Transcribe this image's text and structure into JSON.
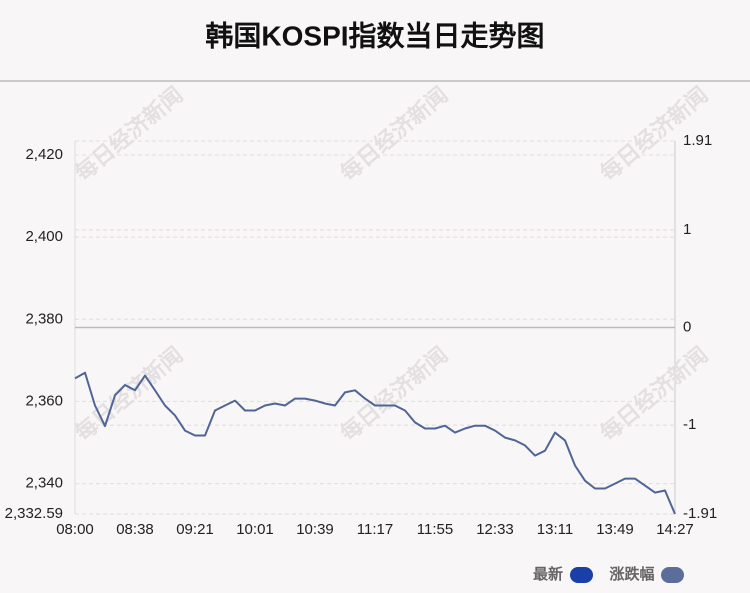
{
  "chart_data": {
    "type": "line",
    "title": "韩国KOSPI指数当日走势图",
    "watermark": "每日经济新闻",
    "categories": [
      "08:00",
      null,
      null,
      null,
      null,
      null,
      "08:38",
      null,
      null,
      null,
      null,
      null,
      "09:21",
      null,
      null,
      null,
      null,
      null,
      "10:01",
      null,
      null,
      null,
      null,
      null,
      "10:39",
      null,
      null,
      null,
      null,
      null,
      "11:17",
      null,
      null,
      null,
      null,
      null,
      "11:55",
      null,
      null,
      null,
      null,
      null,
      "12:33",
      null,
      null,
      null,
      null,
      null,
      "13:11",
      null,
      null,
      null,
      null,
      null,
      "13:49",
      null,
      null,
      null,
      null,
      null,
      "14:27"
    ],
    "series": [
      {
        "name": "最新",
        "color": "#1a3fa8",
        "line_color": "#4f6596",
        "values": [
          2365.6,
          2367,
          2359,
          2354,
          2361.5,
          2364,
          2362.7,
          2366.3,
          2362.7,
          2359,
          2356.6,
          2352.9,
          2351.7,
          2351.7,
          2357.8,
          2359,
          2360.2,
          2357.8,
          2357.8,
          2359,
          2359.5,
          2359,
          2360.7,
          2360.7,
          2360.2,
          2359.5,
          2359,
          2362.2,
          2362.7,
          2360.7,
          2359,
          2359,
          2359,
          2357.8,
          2354.9,
          2353.4,
          2353.4,
          2354.1,
          2352.4,
          2353.4,
          2354.1,
          2354.1,
          2352.9,
          2351.2,
          2350.5,
          2349.3,
          2346.8,
          2348,
          2352.4,
          2350.5,
          2344.4,
          2340.7,
          2338.8,
          2338.8,
          2340,
          2341.2,
          2341.2,
          2339.5,
          2337.8,
          2338.3,
          2332.59
        ]
      },
      {
        "name": "涨跌幅",
        "color": "#5b6e9b",
        "axis": "y2"
      }
    ],
    "ylim": [
      2332.59,
      2423.41
    ],
    "yticks": [
      {
        "value": 2332.59,
        "label": "2,332.59"
      },
      {
        "value": 2340,
        "label": "2,340"
      },
      {
        "value": 2360,
        "label": "2,360"
      },
      {
        "value": 2380,
        "label": "2,380"
      },
      {
        "value": 2400,
        "label": "2,400"
      },
      {
        "value": 2420,
        "label": "2,420"
      }
    ],
    "y2lim": [
      -1.91,
      1.91
    ],
    "y2ticks": [
      -1.91,
      -1,
      0,
      1,
      1.91
    ],
    "grid": true
  }
}
